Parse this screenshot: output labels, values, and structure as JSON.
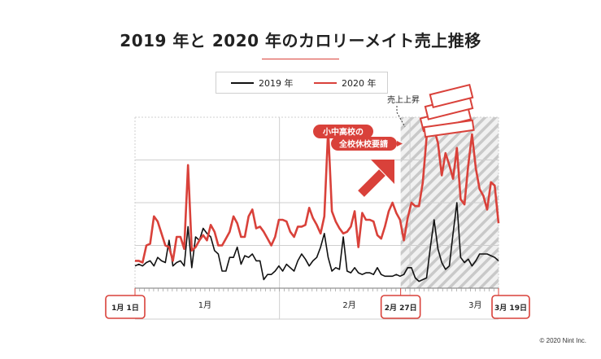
{
  "title": "2019 年と 2020 年のカロリーメイト売上推移",
  "legend": [
    {
      "label": "2019 年",
      "color": "#111111"
    },
    {
      "label": "2020 年",
      "color": "#d9413a"
    }
  ],
  "copyright": "© 2020 Nint Inc.",
  "chart_data": {
    "type": "line",
    "title": "2019 年と 2020 年のカロリーメイト売上推移",
    "x_range": [
      1,
      79
    ],
    "x_unit": "day of year (Jan 1 = 1)",
    "y_range": [
      0,
      100
    ],
    "y_unit": "relative sales index (axis unlabeled)",
    "gridlines": 4,
    "month_labels": [
      {
        "label": "1月",
        "day": 16
      },
      {
        "label": "2月",
        "day": 47
      },
      {
        "label": "3月",
        "day": 74
      }
    ],
    "month_boundaries": [
      32,
      60
    ],
    "date_callouts": [
      {
        "label": "1月 1日",
        "day": 1
      },
      {
        "label": "2月 27日",
        "day": 58
      },
      {
        "label": "3月 19日",
        "day": 79
      }
    ],
    "highlight_region": {
      "from_day": 58,
      "to_day": 79,
      "pattern": "diagonal-hatch"
    },
    "series": [
      {
        "name": "2019 年",
        "color": "#111111",
        "values": [
          13,
          14,
          13,
          15,
          16,
          13,
          18,
          16,
          15,
          28,
          13,
          15,
          16,
          13,
          36,
          12,
          30,
          28,
          35,
          32,
          30,
          22,
          20,
          10,
          10,
          18,
          18,
          24,
          14,
          19,
          18,
          20,
          16,
          16,
          5,
          8,
          8,
          10,
          13,
          10,
          14,
          12,
          10,
          16,
          20,
          17,
          13,
          16,
          18,
          24,
          32,
          18,
          10,
          12,
          11,
          30,
          10,
          9,
          12,
          9,
          8,
          9,
          9,
          8,
          12,
          8,
          7,
          7,
          7,
          8,
          7,
          8,
          12,
          12,
          6,
          4,
          5,
          6,
          24,
          40,
          23,
          15,
          11,
          13,
          32,
          50,
          18,
          15,
          17,
          13,
          16,
          20,
          20,
          20,
          19,
          18,
          16
        ]
      },
      {
        "name": "2020 年",
        "color": "#d9413a",
        "values": [
          16,
          16,
          15,
          25,
          26,
          42,
          39,
          32,
          25,
          24,
          16,
          30,
          30,
          23,
          72,
          22,
          24,
          28,
          31,
          28,
          37,
          33,
          25,
          25,
          29,
          33,
          42,
          38,
          30,
          30,
          42,
          46,
          35,
          36,
          33,
          29,
          25,
          30,
          40,
          40,
          39,
          33,
          30,
          36,
          36,
          37,
          47,
          41,
          37,
          32,
          42,
          93,
          45,
          39,
          35,
          32,
          33,
          36,
          45,
          24,
          44,
          40,
          40,
          39,
          31,
          29,
          36,
          45,
          50,
          44,
          40,
          28,
          41,
          50,
          48,
          48,
          62,
          88,
          98,
          93,
          85,
          66,
          79,
          72,
          64,
          82,
          52,
          49,
          72,
          90,
          70,
          58,
          54,
          46,
          62,
          60,
          38
        ]
      }
    ],
    "annotations": [
      {
        "text": "小中高校の",
        "day": 36,
        "style": "red-pill"
      },
      {
        "text": "全校休校要請",
        "day": 36,
        "style": "red-pill"
      },
      {
        "text": "売上上昇",
        "day": 59,
        "style": "dashed-leader"
      }
    ]
  }
}
